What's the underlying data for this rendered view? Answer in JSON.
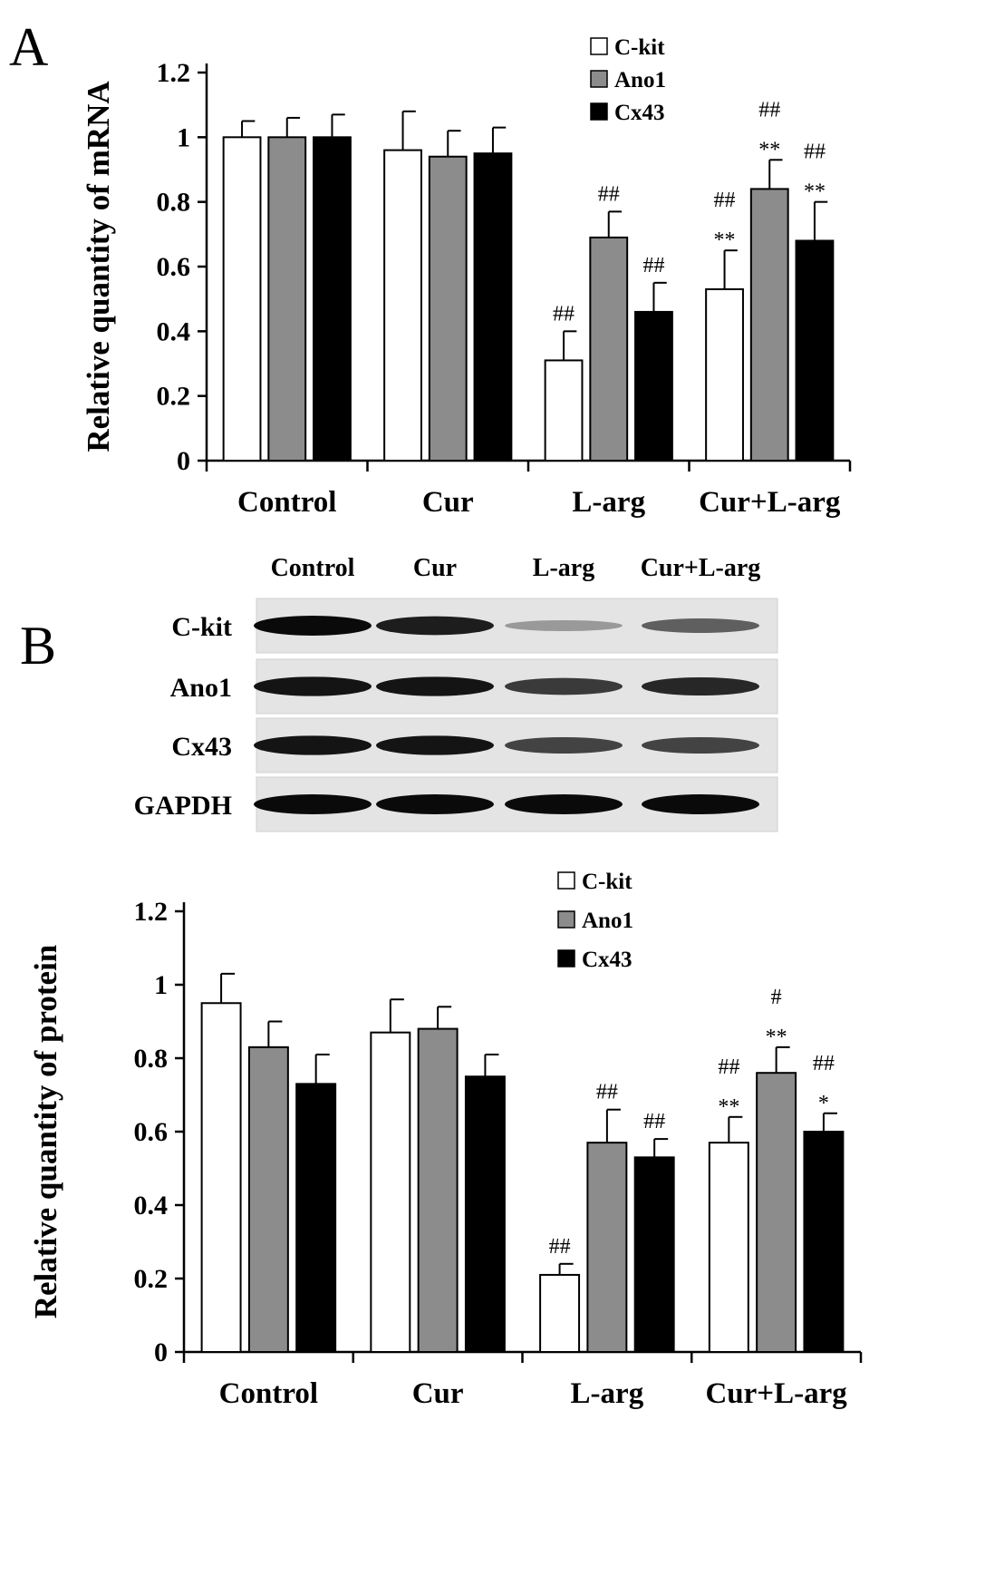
{
  "panels": {
    "a_letter": "A",
    "b_letter": "B"
  },
  "legend": [
    "C-kit",
    "Ano1",
    "Cx43"
  ],
  "colors": {
    "C-kit": "#ffffff",
    "Ano1": "#8c8c8c",
    "Cx43": "#000000"
  },
  "blot": {
    "lanes": [
      "Control",
      "Cur",
      "L-arg",
      "Cur+L-arg"
    ],
    "rows": [
      "C-kit",
      "Ano1",
      "Cx43",
      "GAPDH"
    ],
    "intensity": [
      [
        1.0,
        0.9,
        0.25,
        0.55
      ],
      [
        0.95,
        0.95,
        0.75,
        0.85
      ],
      [
        0.95,
        0.95,
        0.7,
        0.7
      ],
      [
        1.0,
        1.0,
        1.0,
        1.0
      ]
    ]
  },
  "chart_data": [
    {
      "type": "bar",
      "ylabel": "Relative quantity of mRNA",
      "categories": [
        "Control",
        "Cur",
        "L-arg",
        "Cur+L-arg"
      ],
      "ylim": [
        0,
        1.2
      ],
      "yticks": [
        "0",
        "0.2",
        "0.4",
        "0.6",
        "0.8",
        "1",
        "1.2"
      ],
      "series": [
        {
          "name": "C-kit",
          "values": [
            1.0,
            0.96,
            0.31,
            0.53
          ],
          "errors": [
            0.05,
            0.12,
            0.09,
            0.12
          ]
        },
        {
          "name": "Ano1",
          "values": [
            1.0,
            0.94,
            0.69,
            0.84
          ],
          "errors": [
            0.06,
            0.08,
            0.08,
            0.09
          ]
        },
        {
          "name": "Cx43",
          "values": [
            1.0,
            0.95,
            0.46,
            0.68
          ],
          "errors": [
            0.07,
            0.08,
            0.09,
            0.12
          ]
        }
      ],
      "annotations": [
        [
          [
            "",
            ""
          ],
          [
            "",
            ""
          ],
          [
            "",
            ""
          ]
        ],
        [
          [
            "",
            ""
          ],
          [
            "",
            ""
          ],
          [
            "",
            ""
          ]
        ],
        [
          [
            "##",
            ""
          ],
          [
            "##",
            ""
          ],
          [
            "##",
            ""
          ]
        ],
        [
          [
            "##",
            "**"
          ],
          [
            "##",
            "**"
          ],
          [
            "##",
            "**"
          ]
        ]
      ]
    },
    {
      "type": "bar",
      "ylabel": "Relative  quantity of protein",
      "categories": [
        "Control",
        "Cur",
        "L-arg",
        "Cur+L-arg"
      ],
      "ylim": [
        0,
        1.2
      ],
      "yticks": [
        "0",
        "0.2",
        "0.4",
        "0.6",
        "0.8",
        "1",
        "1.2"
      ],
      "series": [
        {
          "name": "C-kit",
          "values": [
            0.95,
            0.87,
            0.21,
            0.57
          ],
          "errors": [
            0.08,
            0.09,
            0.03,
            0.07
          ]
        },
        {
          "name": "Ano1",
          "values": [
            0.83,
            0.88,
            0.57,
            0.76
          ],
          "errors": [
            0.07,
            0.06,
            0.09,
            0.07
          ]
        },
        {
          "name": "Cx43",
          "values": [
            0.73,
            0.75,
            0.53,
            0.6
          ],
          "errors": [
            0.08,
            0.06,
            0.05,
            0.05
          ]
        }
      ],
      "annotations": [
        [
          [
            "",
            ""
          ],
          [
            "",
            ""
          ],
          [
            "",
            ""
          ]
        ],
        [
          [
            "",
            ""
          ],
          [
            "",
            ""
          ],
          [
            "",
            ""
          ]
        ],
        [
          [
            "##",
            ""
          ],
          [
            "##",
            ""
          ],
          [
            "##",
            ""
          ]
        ],
        [
          [
            "##",
            "**"
          ],
          [
            "#",
            "**"
          ],
          [
            "##",
            "*"
          ]
        ]
      ]
    }
  ]
}
